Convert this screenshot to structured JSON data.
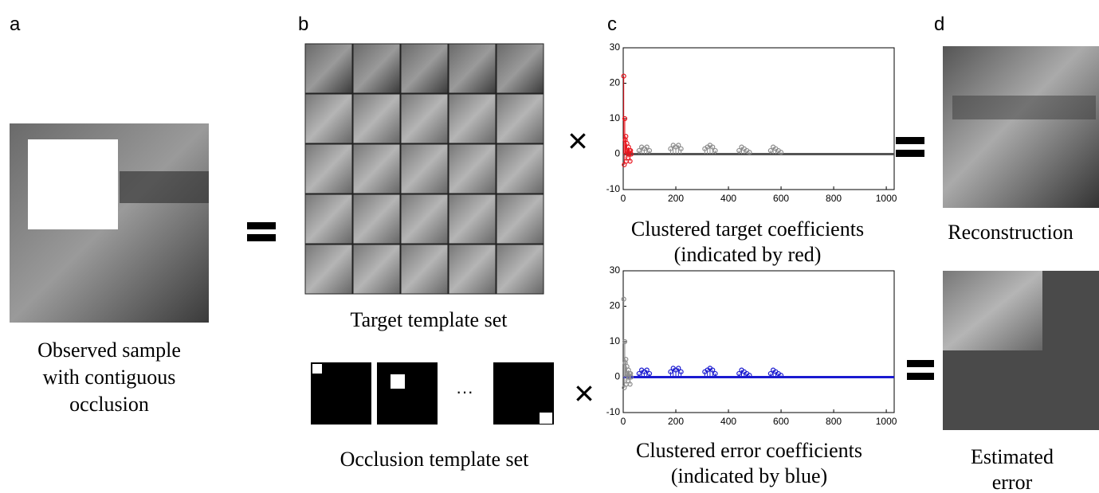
{
  "panel_labels": [
    "a",
    "b",
    "c",
    "d"
  ],
  "captions": {
    "observed": [
      "Observed sample",
      "with contiguous",
      "occlusion"
    ],
    "target_templates": [
      "Target template set"
    ],
    "occlusion_templates": [
      "Occlusion template set"
    ],
    "reconstruction": [
      "Reconstruction"
    ],
    "estimated_error": [
      "Estimated",
      "error"
    ]
  },
  "operators": {
    "times": [
      "×",
      "×"
    ],
    "ellipsis": "···"
  },
  "chart_data": [
    {
      "type": "stem",
      "caption": [
        "Clustered target coefficients",
        "(indicated by red)"
      ],
      "xlim": [
        0,
        1030
      ],
      "xticks": [
        0,
        200,
        400,
        600,
        800,
        1000
      ],
      "ylim": [
        -10,
        30
      ],
      "yticks": [
        -10,
        0,
        10,
        20,
        30
      ],
      "baseline_color": "#555555",
      "series": [
        {
          "color": "#e8141c",
          "x": [
            2,
            4,
            6,
            8,
            10,
            12,
            14,
            16,
            18,
            20,
            22,
            24,
            26,
            28,
            30
          ],
          "values": [
            22,
            -3,
            10,
            4,
            5,
            -2,
            3,
            1,
            -1,
            2,
            0,
            1,
            -2,
            1,
            0
          ]
        },
        {
          "color": "#8c8c8c",
          "x": [
            60,
            70,
            80,
            90,
            100,
            180,
            190,
            200,
            210,
            220,
            310,
            320,
            330,
            340,
            350,
            440,
            450,
            460,
            470,
            480,
            560,
            570,
            580,
            590,
            600
          ],
          "values": [
            1,
            2,
            1.5,
            2,
            1,
            1.5,
            2.5,
            2,
            2.5,
            1.5,
            1.5,
            2,
            2.5,
            2,
            1,
            1,
            2,
            1.5,
            1,
            0.5,
            1,
            2,
            1.5,
            1,
            0.5
          ]
        }
      ]
    },
    {
      "type": "stem",
      "caption": [
        "Clustered error coefficients",
        "(indicated by blue)"
      ],
      "xlim": [
        0,
        1030
      ],
      "xticks": [
        0,
        200,
        400,
        600,
        800,
        1000
      ],
      "ylim": [
        -10,
        30
      ],
      "yticks": [
        -10,
        0,
        10,
        20,
        30
      ],
      "baseline_color": "#1a1ad0",
      "series": [
        {
          "color": "#8c8c8c",
          "x": [
            2,
            4,
            6,
            8,
            10,
            12,
            14,
            16,
            18,
            20,
            22,
            24,
            26,
            28,
            30
          ],
          "values": [
            22,
            -3,
            10,
            4,
            5,
            -2,
            3,
            1,
            -1,
            2,
            0,
            1,
            -2,
            1,
            0
          ]
        },
        {
          "color": "#1a1ad0",
          "x": [
            60,
            70,
            80,
            90,
            100,
            180,
            190,
            200,
            210,
            220,
            310,
            320,
            330,
            340,
            350,
            440,
            450,
            460,
            470,
            480,
            560,
            570,
            580,
            590,
            600
          ],
          "values": [
            1,
            2,
            1.5,
            2,
            1,
            1.5,
            2.5,
            2,
            2.5,
            1.5,
            1.5,
            2,
            2.5,
            2,
            1,
            1,
            2,
            1.5,
            1,
            0.5,
            1,
            2,
            1.5,
            1,
            0.5
          ]
        }
      ]
    }
  ]
}
